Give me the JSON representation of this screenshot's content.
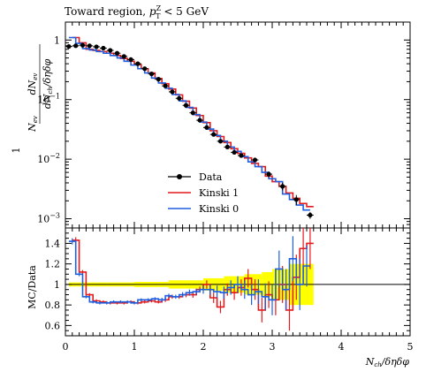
{
  "title": "Toward region, p_T^Z < 5 GeV",
  "title_parts": {
    "main": "Toward region, ",
    "var": "p",
    "sup": "Z",
    "sub": "T",
    "rest": " < 5 GeV"
  },
  "main_ylabel": "1/N_ev dN_ev/dN_ch/dηdφ",
  "main_ylabel_parts": {
    "num": "dN",
    "num_sub": "ev",
    "den_left": "N",
    "den_left_sub": "ev",
    "den_right": "dN",
    "den_right_sub": "ch",
    "den_rest": "/δηδφ",
    "one": "1"
  },
  "ratio_ylabel": "MC/Data",
  "xlabel": "N_ch/δηδφ",
  "xlabel_parts": {
    "var": "N",
    "sub": "ch",
    "rest": "/δηδφ"
  },
  "legend": [
    {
      "label": "Data",
      "color": "#000000",
      "kind": "marker"
    },
    {
      "label": "Kinski 1",
      "color": "#e41a1c",
      "kind": "line"
    },
    {
      "label": "Kinski 0",
      "color": "#1f5fe0",
      "kind": "line"
    }
  ],
  "chart_data": {
    "type": "line",
    "log_y": true,
    "xlim": [
      0,
      5
    ],
    "ylim": [
      0.0007,
      2.0
    ],
    "ratio_ylim": [
      0.5,
      1.55
    ],
    "x_ticks": [
      "0",
      "1",
      "2",
      "3",
      "4",
      "5"
    ],
    "y_ticks": [
      "1",
      "10^-1",
      "10^-2",
      "10^-3"
    ],
    "ratio_ticks": [
      "0.6",
      "0.8",
      "1",
      "1.2",
      "1.4"
    ],
    "bin_width": 0.1,
    "data_points": [
      {
        "x": 0.05,
        "y": 0.78,
        "e": 0.02
      },
      {
        "x": 0.15,
        "y": 0.8,
        "e": 0.02
      },
      {
        "x": 0.25,
        "y": 0.82,
        "e": 0.02
      },
      {
        "x": 0.35,
        "y": 0.8,
        "e": 0.02
      },
      {
        "x": 0.45,
        "y": 0.77,
        "e": 0.02
      },
      {
        "x": 0.55,
        "y": 0.73,
        "e": 0.02
      },
      {
        "x": 0.65,
        "y": 0.67,
        "e": 0.02
      },
      {
        "x": 0.75,
        "y": 0.6,
        "e": 0.02
      },
      {
        "x": 0.85,
        "y": 0.53,
        "e": 0.02
      },
      {
        "x": 0.95,
        "y": 0.47,
        "e": 0.015
      },
      {
        "x": 1.05,
        "y": 0.4,
        "e": 0.012
      },
      {
        "x": 1.15,
        "y": 0.33,
        "e": 0.01
      },
      {
        "x": 1.25,
        "y": 0.27,
        "e": 0.01
      },
      {
        "x": 1.35,
        "y": 0.22,
        "e": 0.008
      },
      {
        "x": 1.45,
        "y": 0.17,
        "e": 0.006
      },
      {
        "x": 1.55,
        "y": 0.135,
        "e": 0.005
      },
      {
        "x": 1.65,
        "y": 0.105,
        "e": 0.004
      },
      {
        "x": 1.75,
        "y": 0.08,
        "e": 0.003
      },
      {
        "x": 1.85,
        "y": 0.06,
        "e": 0.0025
      },
      {
        "x": 1.95,
        "y": 0.045,
        "e": 0.002
      },
      {
        "x": 2.05,
        "y": 0.034,
        "e": 0.0016
      },
      {
        "x": 2.15,
        "y": 0.026,
        "e": 0.0013
      },
      {
        "x": 2.25,
        "y": 0.02,
        "e": 0.0011
      },
      {
        "x": 2.35,
        "y": 0.016,
        "e": 0.0009
      },
      {
        "x": 2.45,
        "y": 0.013,
        "e": 0.0008
      },
      {
        "x": 2.55,
        "y": 0.0115,
        "e": 0.0007
      },
      {
        "x": 2.75,
        "y": 0.0097,
        "e": 0.0006
      },
      {
        "x": 2.95,
        "y": 0.0056,
        "e": 0.0006
      },
      {
        "x": 3.15,
        "y": 0.0035,
        "e": 0.0005
      },
      {
        "x": 3.35,
        "y": 0.0021,
        "e": 0.0004
      },
      {
        "x": 3.55,
        "y": 0.00115,
        "e": 0.00015
      }
    ],
    "series": [
      {
        "name": "Kinski 1",
        "color": "#e41a1c",
        "edges": [
          0.1,
          0.2,
          0.3,
          0.4,
          0.5,
          0.6,
          0.7,
          0.8,
          0.9,
          1.0,
          1.1,
          1.2,
          1.3,
          1.4,
          1.5,
          1.6,
          1.7,
          1.8,
          1.9,
          2.0,
          2.1,
          2.2,
          2.3,
          2.4,
          2.5,
          2.6,
          2.7,
          2.8,
          2.9,
          3.0,
          3.1,
          3.2,
          3.3,
          3.4,
          3.5,
          3.6
        ],
        "values": [
          1.1,
          0.9,
          0.7,
          0.67,
          0.64,
          0.6,
          0.55,
          0.49,
          0.44,
          0.385,
          0.33,
          0.28,
          0.225,
          0.185,
          0.15,
          0.12,
          0.094,
          0.072,
          0.054,
          0.041,
          0.03,
          0.024,
          0.019,
          0.015,
          0.0125,
          0.0105,
          0.0085,
          0.0075,
          0.0052,
          0.0042,
          0.0035,
          0.0027,
          0.0022,
          0.0018,
          0.0016
        ],
        "ratio": [
          1.43,
          1.12,
          0.9,
          0.84,
          0.83,
          0.82,
          0.82,
          0.82,
          0.83,
          0.82,
          0.83,
          0.84,
          0.83,
          0.85,
          0.88,
          0.88,
          0.9,
          0.9,
          0.95,
          1.0,
          0.87,
          0.78,
          0.95,
          0.92,
          0.97,
          1.06,
          0.95,
          0.75,
          0.9,
          0.85,
          1.0,
          0.75,
          1.07,
          1.35,
          1.4
        ],
        "ratio_err": [
          0.03,
          0.02,
          0.015,
          0.015,
          0.015,
          0.015,
          0.015,
          0.015,
          0.015,
          0.015,
          0.015,
          0.015,
          0.015,
          0.02,
          0.02,
          0.02,
          0.025,
          0.03,
          0.03,
          0.04,
          0.05,
          0.06,
          0.06,
          0.07,
          0.08,
          0.09,
          0.1,
          0.12,
          0.13,
          0.15,
          0.18,
          0.2,
          0.22,
          0.25,
          0.25
        ]
      },
      {
        "name": "Kinski 0",
        "color": "#1f5fe0",
        "edges": [
          0.05,
          0.15,
          0.25,
          0.35,
          0.45,
          0.55,
          0.65,
          0.75,
          0.85,
          0.95,
          1.05,
          1.15,
          1.25,
          1.35,
          1.45,
          1.55,
          1.65,
          1.75,
          1.85,
          1.95,
          2.05,
          2.15,
          2.25,
          2.35,
          2.45,
          2.55,
          2.65,
          2.75,
          2.85,
          2.95,
          3.05,
          3.15,
          3.25,
          3.35,
          3.45,
          3.55
        ],
        "values": [
          1.1,
          0.88,
          0.72,
          0.68,
          0.64,
          0.6,
          0.55,
          0.5,
          0.44,
          0.38,
          0.33,
          0.28,
          0.23,
          0.19,
          0.155,
          0.122,
          0.095,
          0.074,
          0.056,
          0.042,
          0.032,
          0.025,
          0.02,
          0.016,
          0.0135,
          0.011,
          0.009,
          0.0075,
          0.006,
          0.0047,
          0.0042,
          0.0026,
          0.0021,
          0.0017,
          0.0014
        ],
        "ratio": [
          1.42,
          1.1,
          0.88,
          0.83,
          0.82,
          0.82,
          0.83,
          0.83,
          0.83,
          0.82,
          0.85,
          0.85,
          0.86,
          0.85,
          0.89,
          0.88,
          0.9,
          0.92,
          0.93,
          0.95,
          0.95,
          0.93,
          0.92,
          0.97,
          1.0,
          0.95,
          0.9,
          0.93,
          0.88,
          0.85,
          1.15,
          0.95,
          1.25,
          1.0,
          1.18
        ],
        "ratio_err": [
          0.03,
          0.02,
          0.015,
          0.015,
          0.015,
          0.015,
          0.015,
          0.015,
          0.015,
          0.015,
          0.015,
          0.015,
          0.015,
          0.02,
          0.02,
          0.02,
          0.025,
          0.03,
          0.03,
          0.04,
          0.05,
          0.06,
          0.06,
          0.07,
          0.08,
          0.09,
          0.1,
          0.12,
          0.13,
          0.15,
          0.18,
          0.2,
          0.22,
          0.25,
          0.2
        ]
      }
    ],
    "data_uncertainty_band": [
      {
        "x0": 0.05,
        "x1": 0.6,
        "err": 0.02
      },
      {
        "x0": 0.6,
        "x1": 1.0,
        "err": 0.02
      },
      {
        "x0": 1.0,
        "x1": 1.5,
        "err": 0.025
      },
      {
        "x0": 1.5,
        "x1": 2.0,
        "err": 0.04
      },
      {
        "x0": 2.0,
        "x1": 2.3,
        "err": 0.06
      },
      {
        "x0": 2.3,
        "x1": 2.6,
        "err": 0.08
      },
      {
        "x0": 2.6,
        "x1": 2.85,
        "err": 0.1
      },
      {
        "x0": 2.85,
        "x1": 3.0,
        "err": 0.12
      },
      {
        "x0": 3.0,
        "x1": 3.25,
        "err": 0.15
      },
      {
        "x0": 3.25,
        "x1": 3.6,
        "err": 0.2
      }
    ]
  }
}
